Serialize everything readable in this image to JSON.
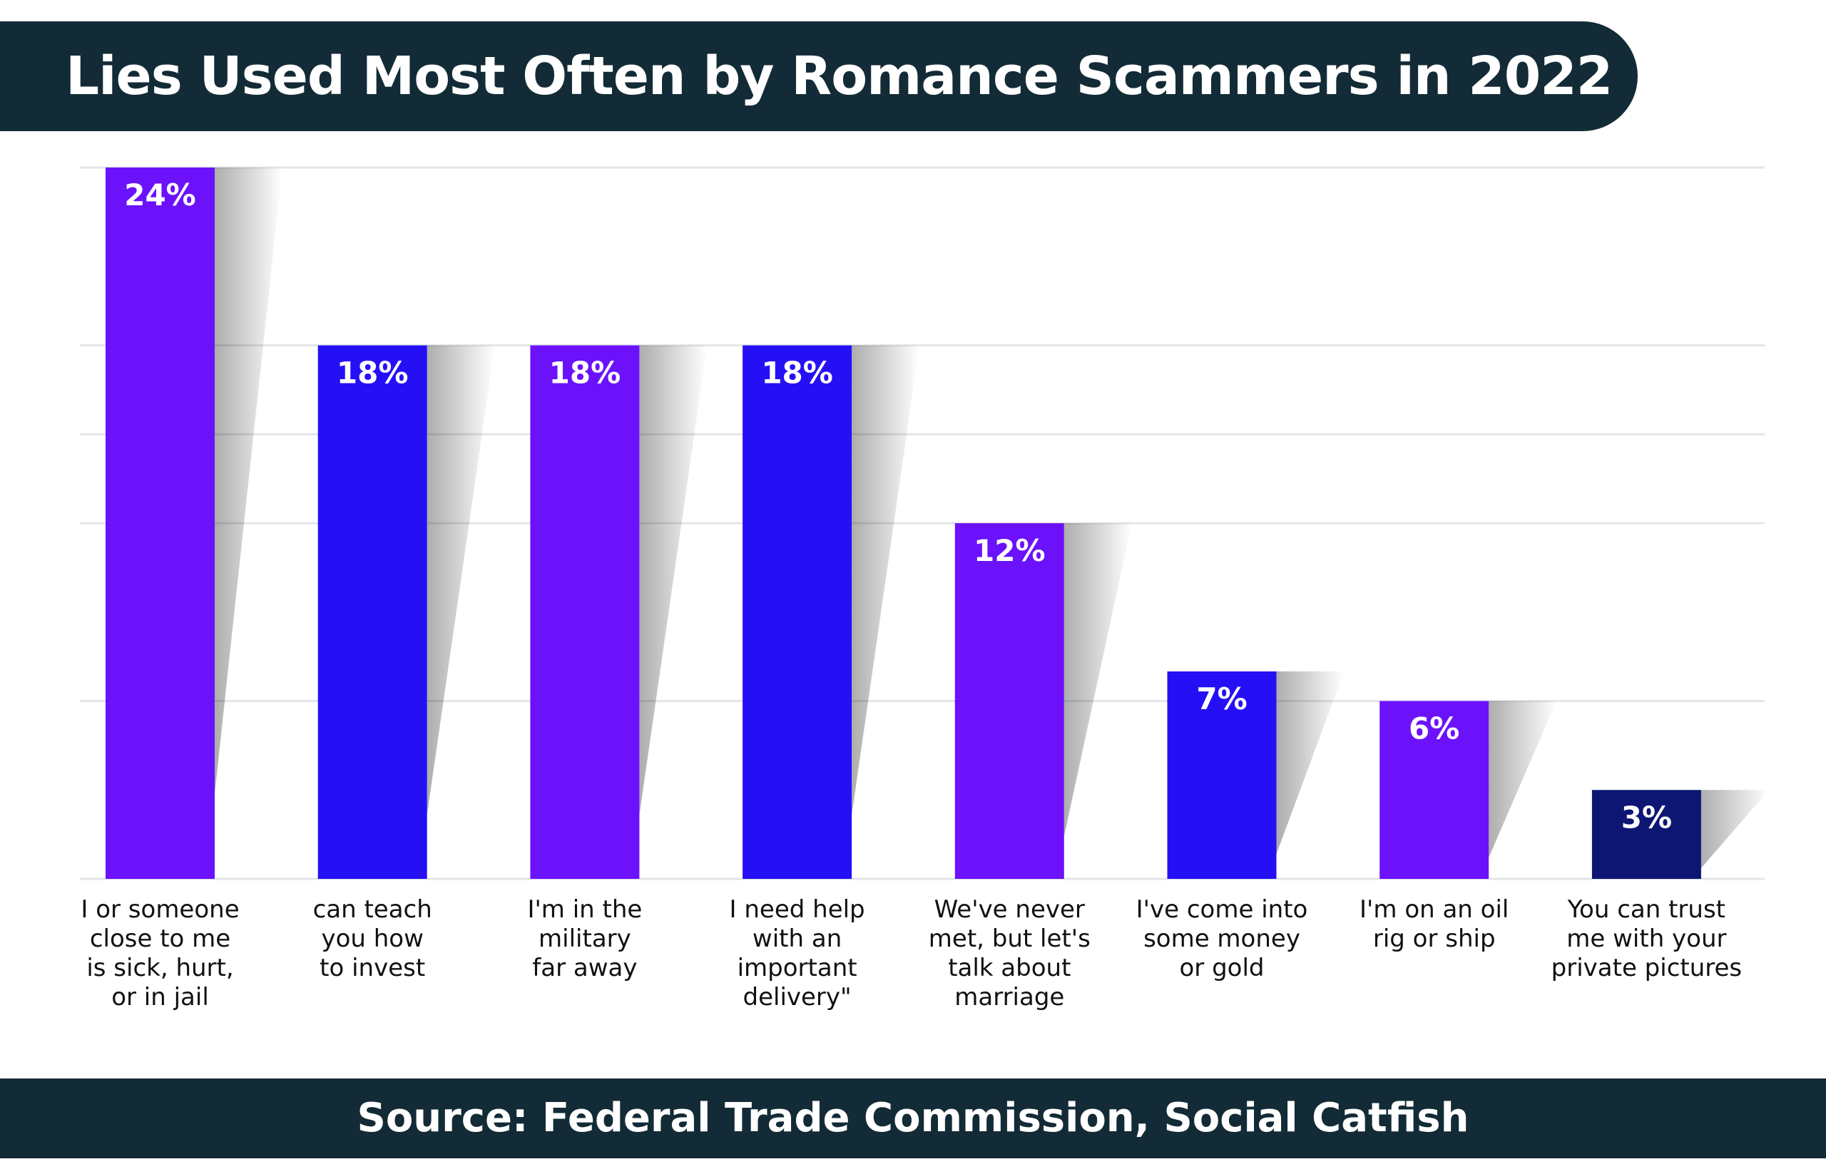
{
  "title": "Lies Used Most Often by Romance Scammers in 2022",
  "source": "Source: Federal Trade Commission, Social Catfish",
  "colors": {
    "header_bg": "#132b36",
    "violet": "#6b12fb",
    "blue": "#2510f6",
    "navy": "#0d1673",
    "grid": "#e3e6e8",
    "label_text": "#111111"
  },
  "chart_data": {
    "type": "bar",
    "title": "Lies Used Most Often by Romance Scammers in 2022",
    "xlabel": "",
    "ylabel": "",
    "ylim": [
      0,
      25
    ],
    "grid": true,
    "legend": "none",
    "categories": [
      [
        "I or someone",
        "close to me",
        "is sick, hurt,",
        "or in jail"
      ],
      [
        "can teach",
        "you how",
        "to invest"
      ],
      [
        "I'm in the",
        "military",
        "far away"
      ],
      [
        "I need help",
        "with an",
        "important",
        "delivery\""
      ],
      [
        "We've never",
        "met, but let's",
        "talk about",
        "marriage"
      ],
      [
        "I've come into",
        "some money",
        "or gold"
      ],
      [
        "I'm on an oil",
        "rig or ship"
      ],
      [
        "You can trust",
        "me with your",
        "private pictures"
      ]
    ],
    "values": [
      24,
      18,
      18,
      18,
      12,
      7,
      6,
      3
    ],
    "value_labels": [
      "24%",
      "18%",
      "18%",
      "18%",
      "12%",
      "7%",
      "6%",
      "3%"
    ],
    "bar_colors": [
      "#6b12fb",
      "#2510f6",
      "#6b12fb",
      "#2510f6",
      "#6b12fb",
      "#2510f6",
      "#6b12fb",
      "#0d1673"
    ]
  }
}
